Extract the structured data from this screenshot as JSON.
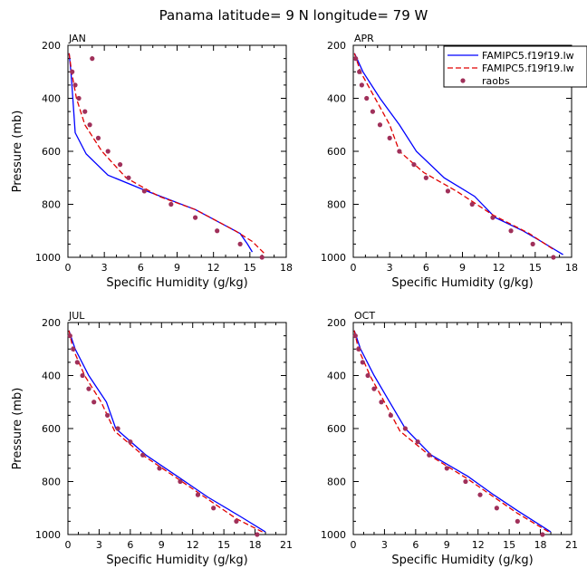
{
  "figure": {
    "title": "Panama  latitude= 9 N longitude= 79 W"
  },
  "colors": {
    "model1": "#0000ff",
    "model2": "#e00000",
    "raobs": "#a0305a"
  },
  "legend": {
    "placement": "top-right of APR panel",
    "entries": [
      {
        "label": "FAMIPC5.f19f19.lw",
        "style": "solid",
        "color": "#0000ff"
      },
      {
        "label": "FAMIPC5.f19f19.lw",
        "style": "dashed",
        "color": "#e00000"
      },
      {
        "label": "raobs",
        "style": "marker",
        "color": "#a0305a"
      }
    ]
  },
  "chart_data": [
    {
      "type": "line",
      "title": "JAN",
      "xlabel": "Specific Humidity (g/kg)",
      "ylabel": "Pressure (mb)",
      "xlim": [
        0,
        18
      ],
      "ylim": [
        1000,
        200
      ],
      "xticks": [
        0,
        3,
        6,
        9,
        12,
        15,
        18
      ],
      "yticks": [
        200,
        400,
        600,
        800,
        1000
      ],
      "series": [
        {
          "kind": "solid",
          "points": [
            [
              0.1,
              230
            ],
            [
              0.25,
              300
            ],
            [
              0.4,
              400
            ],
            [
              0.6,
              530
            ],
            [
              1.5,
              610
            ],
            [
              3.3,
              690
            ],
            [
              6.5,
              750
            ],
            [
              10.5,
              820
            ],
            [
              14.2,
              910
            ],
            [
              14.8,
              950
            ],
            [
              15.2,
              980
            ]
          ]
        },
        {
          "kind": "dashed",
          "points": [
            [
              0.1,
              230
            ],
            [
              0.3,
              300
            ],
            [
              0.7,
              400
            ],
            [
              1.4,
              500
            ],
            [
              2.8,
              600
            ],
            [
              4.8,
              700
            ],
            [
              7.5,
              770
            ],
            [
              10.5,
              820
            ],
            [
              13.8,
              900
            ],
            [
              15.2,
              940
            ],
            [
              16.3,
              990
            ]
          ]
        },
        {
          "kind": "raobs",
          "points": [
            [
              2.0,
              250
            ],
            [
              0.35,
              300
            ],
            [
              0.6,
              350
            ],
            [
              0.9,
              400
            ],
            [
              1.4,
              450
            ],
            [
              1.8,
              500
            ],
            [
              2.5,
              550
            ],
            [
              3.3,
              600
            ],
            [
              4.3,
              650
            ],
            [
              5.0,
              700
            ],
            [
              6.3,
              750
            ],
            [
              8.5,
              800
            ],
            [
              10.5,
              850
            ],
            [
              12.3,
              900
            ],
            [
              14.2,
              950
            ],
            [
              16.0,
              1000
            ]
          ]
        }
      ]
    },
    {
      "type": "line",
      "title": "APR",
      "xlabel": "Specific Humidity (g/kg)",
      "ylabel": "",
      "xlim": [
        0,
        18
      ],
      "ylim": [
        1000,
        200
      ],
      "xticks": [
        0,
        3,
        6,
        9,
        12,
        15,
        18
      ],
      "yticks": [
        200,
        400,
        600,
        800,
        1000
      ],
      "series": [
        {
          "kind": "solid",
          "points": [
            [
              0.1,
              230
            ],
            [
              0.8,
              300
            ],
            [
              2.2,
              400
            ],
            [
              3.8,
              500
            ],
            [
              5.2,
              600
            ],
            [
              7.5,
              700
            ],
            [
              10,
              770
            ],
            [
              11.7,
              850
            ],
            [
              14,
              900
            ],
            [
              15.5,
              940
            ],
            [
              17.3,
              990
            ]
          ]
        },
        {
          "kind": "dashed",
          "points": [
            [
              0.1,
              230
            ],
            [
              0.6,
              300
            ],
            [
              1.8,
              400
            ],
            [
              3,
              500
            ],
            [
              3.8,
              600
            ],
            [
              5.8,
              680
            ],
            [
              8.5,
              750
            ],
            [
              11.5,
              840
            ],
            [
              14.5,
              910
            ],
            [
              16.5,
              970
            ]
          ]
        },
        {
          "kind": "raobs",
          "points": [
            [
              0.2,
              250
            ],
            [
              0.5,
              300
            ],
            [
              0.7,
              350
            ],
            [
              1.1,
              400
            ],
            [
              1.6,
              450
            ],
            [
              2.2,
              500
            ],
            [
              3.0,
              550
            ],
            [
              3.8,
              600
            ],
            [
              5.0,
              650
            ],
            [
              6.0,
              700
            ],
            [
              7.8,
              750
            ],
            [
              9.8,
              800
            ],
            [
              11.5,
              850
            ],
            [
              13.0,
              900
            ],
            [
              14.8,
              950
            ],
            [
              16.5,
              1000
            ]
          ]
        }
      ]
    },
    {
      "type": "line",
      "title": "JUL",
      "xlabel": "Specific Humidity (g/kg)",
      "ylabel": "Pressure (mb)",
      "xlim": [
        0,
        21
      ],
      "ylim": [
        1000,
        200
      ],
      "xticks": [
        0,
        3,
        6,
        9,
        12,
        15,
        18,
        21
      ],
      "yticks": [
        200,
        400,
        600,
        800,
        1000
      ],
      "series": [
        {
          "kind": "solid",
          "points": [
            [
              0.1,
              230
            ],
            [
              0.7,
              300
            ],
            [
              2,
              400
            ],
            [
              3.7,
              500
            ],
            [
              4.6,
              600
            ],
            [
              7.5,
              700
            ],
            [
              10.5,
              780
            ],
            [
              13.5,
              860
            ],
            [
              16.5,
              930
            ],
            [
              19,
              990
            ]
          ]
        },
        {
          "kind": "dashed",
          "points": [
            [
              0.1,
              230
            ],
            [
              0.5,
              300
            ],
            [
              1.6,
              400
            ],
            [
              3.2,
              500
            ],
            [
              4.5,
              610
            ],
            [
              7.2,
              700
            ],
            [
              10.2,
              780
            ],
            [
              13.2,
              860
            ],
            [
              16.2,
              940
            ],
            [
              18.7,
              990
            ]
          ]
        },
        {
          "kind": "raobs",
          "points": [
            [
              0.2,
              250
            ],
            [
              0.5,
              300
            ],
            [
              0.9,
              350
            ],
            [
              1.4,
              400
            ],
            [
              2.0,
              450
            ],
            [
              2.5,
              500
            ],
            [
              3.8,
              550
            ],
            [
              4.8,
              600
            ],
            [
              6.0,
              650
            ],
            [
              7.2,
              700
            ],
            [
              8.8,
              750
            ],
            [
              10.8,
              800
            ],
            [
              12.5,
              850
            ],
            [
              14.0,
              900
            ],
            [
              16.2,
              950
            ],
            [
              18.2,
              1000
            ]
          ]
        }
      ]
    },
    {
      "type": "line",
      "title": "OCT",
      "xlabel": "Specific Humidity (g/kg)",
      "ylabel": "",
      "xlim": [
        0,
        21
      ],
      "ylim": [
        1000,
        200
      ],
      "xticks": [
        0,
        3,
        6,
        9,
        12,
        15,
        18,
        21
      ],
      "yticks": [
        200,
        400,
        600,
        800,
        1000
      ],
      "series": [
        {
          "kind": "solid",
          "points": [
            [
              0.1,
              230
            ],
            [
              0.7,
              300
            ],
            [
              2,
              400
            ],
            [
              3.5,
              500
            ],
            [
              5,
              600
            ],
            [
              7.5,
              700
            ],
            [
              11,
              780
            ],
            [
              13.5,
              850
            ],
            [
              15.8,
              910
            ],
            [
              19,
              990
            ]
          ]
        },
        {
          "kind": "dashed",
          "points": [
            [
              0.1,
              230
            ],
            [
              0.5,
              300
            ],
            [
              1.6,
              400
            ],
            [
              3,
              500
            ],
            [
              4.5,
              610
            ],
            [
              7.3,
              700
            ],
            [
              11,
              790
            ],
            [
              15.8,
              920
            ],
            [
              18.8,
              990
            ]
          ]
        },
        {
          "kind": "raobs",
          "points": [
            [
              0.2,
              250
            ],
            [
              0.5,
              300
            ],
            [
              0.9,
              350
            ],
            [
              1.4,
              400
            ],
            [
              2.0,
              450
            ],
            [
              2.7,
              500
            ],
            [
              3.6,
              550
            ],
            [
              5.0,
              600
            ],
            [
              6.2,
              650
            ],
            [
              7.3,
              700
            ],
            [
              9.0,
              750
            ],
            [
              10.8,
              800
            ],
            [
              12.2,
              850
            ],
            [
              13.8,
              900
            ],
            [
              15.8,
              950
            ],
            [
              18.2,
              1000
            ]
          ]
        }
      ]
    }
  ]
}
